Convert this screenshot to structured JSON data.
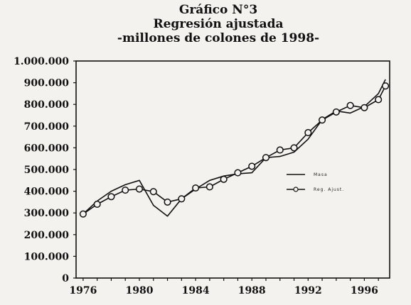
{
  "chart_data": {
    "type": "line",
    "title": "Gráfico N°3",
    "subtitle": "Regresión ajustada",
    "subtitle2": "-millones de colones de 1998-",
    "xlabel": "",
    "ylabel": "",
    "xlim": [
      1975.5,
      1997.8
    ],
    "ylim": [
      0,
      1000000
    ],
    "y_ticks": [
      "0",
      "100.000",
      "200.000",
      "300.000",
      "400.000",
      "500.000",
      "600.000",
      "700.000",
      "800.000",
      "900.000",
      "1.000.000"
    ],
    "x_ticks": [
      "1976",
      "1980",
      "1984",
      "1988",
      "1992",
      "1996"
    ],
    "legend_position": "right-middle",
    "grid": false,
    "series": [
      {
        "name": "Masa",
        "marker": "none",
        "points": [
          [
            1976,
            295000
          ],
          [
            1977,
            355000
          ],
          [
            1978,
            400000
          ],
          [
            1979,
            430000
          ],
          [
            1980,
            450000
          ],
          [
            1981,
            335000
          ],
          [
            1982,
            285000
          ],
          [
            1983,
            365000
          ],
          [
            1984,
            410000
          ],
          [
            1985,
            450000
          ],
          [
            1986,
            470000
          ],
          [
            1987,
            480000
          ],
          [
            1988,
            485000
          ],
          [
            1989,
            555000
          ],
          [
            1990,
            560000
          ],
          [
            1991,
            580000
          ],
          [
            1992,
            640000
          ],
          [
            1993,
            730000
          ],
          [
            1994,
            770000
          ],
          [
            1995,
            760000
          ],
          [
            1996,
            790000
          ],
          [
            1997,
            850000
          ],
          [
            1997.5,
            915000
          ]
        ]
      },
      {
        "name": "Reg. Ajust.",
        "marker": "circle",
        "points": [
          [
            1976,
            295000
          ],
          [
            1977,
            340000
          ],
          [
            1978,
            375000
          ],
          [
            1979,
            405000
          ],
          [
            1980,
            410000
          ],
          [
            1981,
            398000
          ],
          [
            1982,
            350000
          ],
          [
            1983,
            365000
          ],
          [
            1984,
            415000
          ],
          [
            1985,
            420000
          ],
          [
            1986,
            455000
          ],
          [
            1987,
            485000
          ],
          [
            1988,
            515000
          ],
          [
            1989,
            555000
          ],
          [
            1990,
            590000
          ],
          [
            1991,
            600000
          ],
          [
            1992,
            670000
          ],
          [
            1993,
            728000
          ],
          [
            1994,
            765000
          ],
          [
            1995,
            795000
          ],
          [
            1996,
            785000
          ],
          [
            1997,
            822000
          ],
          [
            1997.5,
            885000
          ]
        ]
      }
    ]
  }
}
